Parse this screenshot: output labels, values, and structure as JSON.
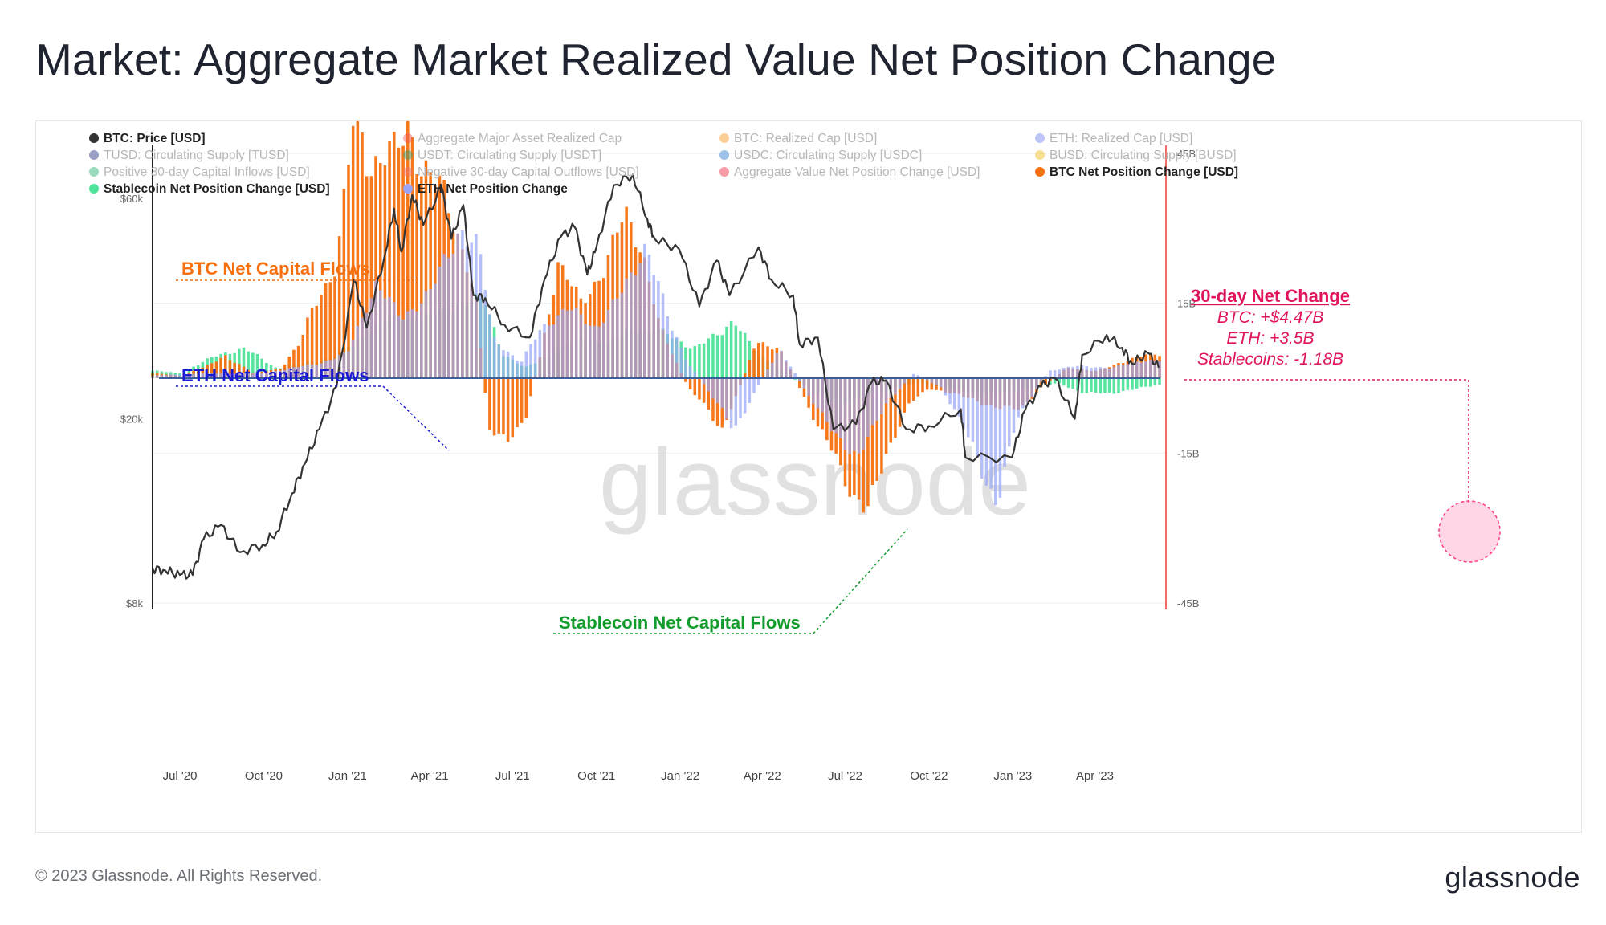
{
  "page": {
    "title": "Market: Aggregate Market Realized Value Net Position Change",
    "copyright": "© 2023 Glassnode. All Rights Reserved.",
    "logo": "glassnode",
    "watermark": "glassnode"
  },
  "chart_data": {
    "type": "line+bar",
    "legend": [
      {
        "label": "BTC: Price [USD]",
        "color": "#333333",
        "active": true
      },
      {
        "label": "Aggregate Major Asset Realized Cap",
        "color": "#f05a5a",
        "active": false
      },
      {
        "label": "BTC: Realized Cap [USD]",
        "color": "#f7931a",
        "active": false
      },
      {
        "label": "ETH: Realized Cap [USD]",
        "color": "#6a7fe8",
        "active": false
      },
      {
        "label": "TUSD: Circulating Supply [TUSD]",
        "color": "#1c2a7a",
        "active": false
      },
      {
        "label": "USDT: Circulating Supply [USDT]",
        "color": "#26a17b",
        "active": false
      },
      {
        "label": "USDC: Circulating Supply [USDC]",
        "color": "#2775ca",
        "active": false
      },
      {
        "label": "BUSD: Circulating Supply [BUSD]",
        "color": "#f0b90b",
        "active": false
      },
      {
        "label": "Positive 30-day Capital Inflows [USD]",
        "color": "#1fb06a",
        "active": false
      },
      {
        "label": "Negative 30-day Capital Outflows [USD]",
        "color": "#f07070",
        "active": false
      },
      {
        "label": "Aggregate Value Net Position Change [USD]",
        "color": "#e8223a",
        "active": false
      },
      {
        "label": "BTC Net Position Change [USD]",
        "color": "#f7700f",
        "active": true
      },
      {
        "label": "Stablecoin Net Position Change [USD]",
        "color": "#4ee39a",
        "active": true
      },
      {
        "label": "ETH Net Position Change",
        "color": "#99a6f7",
        "active": true
      }
    ],
    "x_ticks": [
      "Jul '20",
      "Oct '20",
      "Jan '21",
      "Apr '21",
      "Jul '21",
      "Oct '21",
      "Jan '22",
      "Apr '22",
      "Jul '22",
      "Oct '22",
      "Jan '23",
      "Apr '23"
    ],
    "x_range": [
      "2020-06-01",
      "2023-06-18"
    ],
    "y_left": {
      "label": "",
      "scale": "log",
      "range": [
        8000,
        75000
      ],
      "ticks": [
        "$8k",
        "$20k",
        "$60k"
      ]
    },
    "y_right": {
      "label": "",
      "scale": "linear",
      "range": [
        -45,
        45
      ],
      "unit": "B",
      "ticks": [
        "45B",
        "15B",
        "-15B",
        "-45B"
      ]
    },
    "btc_price": {
      "name": "BTC: Price [USD]",
      "color": "#333333",
      "points": [
        [
          "2020-06-01",
          9500
        ],
        [
          "2020-06-15",
          9400
        ],
        [
          "2020-07-01",
          9200
        ],
        [
          "2020-07-15",
          9200
        ],
        [
          "2020-07-27",
          11000
        ],
        [
          "2020-08-15",
          11800
        ],
        [
          "2020-09-05",
          10300
        ],
        [
          "2020-09-30",
          10700
        ],
        [
          "2020-10-15",
          11400
        ],
        [
          "2020-11-01",
          13800
        ],
        [
          "2020-11-15",
          16000
        ],
        [
          "2020-12-01",
          19000
        ],
        [
          "2020-12-20",
          23500
        ],
        [
          "2021-01-08",
          40000
        ],
        [
          "2021-01-22",
          31500
        ],
        [
          "2021-02-10",
          44500
        ],
        [
          "2021-02-21",
          57000
        ],
        [
          "2021-03-01",
          46000
        ],
        [
          "2021-03-13",
          61000
        ],
        [
          "2021-03-25",
          52500
        ],
        [
          "2021-04-14",
          63500
        ],
        [
          "2021-04-25",
          49000
        ],
        [
          "2021-05-08",
          58000
        ],
        [
          "2021-05-19",
          37000
        ],
        [
          "2021-06-01",
          36500
        ],
        [
          "2021-06-22",
          32000
        ],
        [
          "2021-07-20",
          30000
        ],
        [
          "2021-08-05",
          40000
        ],
        [
          "2021-08-23",
          49500
        ],
        [
          "2021-09-07",
          52000
        ],
        [
          "2021-09-21",
          41000
        ],
        [
          "2021-10-01",
          47000
        ],
        [
          "2021-10-20",
          64000
        ],
        [
          "2021-11-10",
          67500
        ],
        [
          "2021-11-26",
          54000
        ],
        [
          "2021-12-04",
          49000
        ],
        [
          "2021-12-31",
          46500
        ],
        [
          "2022-01-22",
          35000
        ],
        [
          "2022-02-10",
          44000
        ],
        [
          "2022-02-24",
          37000
        ],
        [
          "2022-03-28",
          47000
        ],
        [
          "2022-04-11",
          40000
        ],
        [
          "2022-05-05",
          37000
        ],
        [
          "2022-05-12",
          29000
        ],
        [
          "2022-06-01",
          30000
        ],
        [
          "2022-06-18",
          19000
        ],
        [
          "2022-07-13",
          19500
        ],
        [
          "2022-07-30",
          24000
        ],
        [
          "2022-08-15",
          24200
        ],
        [
          "2022-09-06",
          19000
        ],
        [
          "2022-10-01",
          19300
        ],
        [
          "2022-11-05",
          21000
        ],
        [
          "2022-11-10",
          16500
        ],
        [
          "2022-12-31",
          16500
        ],
        [
          "2023-01-14",
          20800
        ],
        [
          "2023-02-01",
          23500
        ],
        [
          "2023-02-16",
          24500
        ],
        [
          "2023-03-10",
          20000
        ],
        [
          "2023-03-18",
          27500
        ],
        [
          "2023-04-14",
          30400
        ],
        [
          "2023-05-01",
          28500
        ],
        [
          "2023-05-12",
          26300
        ],
        [
          "2023-05-29",
          27800
        ],
        [
          "2023-06-10",
          25800
        ]
      ]
    },
    "btc_net_position_change": {
      "name": "BTC Net Position Change [USD]",
      "color": "#f7700f",
      "unit": "B",
      "points": [
        [
          "2020-06-01",
          1.0
        ],
        [
          "2020-07-01",
          0.5
        ],
        [
          "2020-08-01",
          2.5
        ],
        [
          "2020-08-20",
          4.5
        ],
        [
          "2020-09-20",
          1.0
        ],
        [
          "2020-10-20",
          2.0
        ],
        [
          "2020-11-10",
          7.0
        ],
        [
          "2020-11-25",
          15.0
        ],
        [
          "2020-12-20",
          22.0
        ],
        [
          "2021-01-10",
          56.0
        ],
        [
          "2021-01-25",
          42.0
        ],
        [
          "2021-02-20",
          45.0
        ],
        [
          "2021-03-10",
          51.0
        ],
        [
          "2021-03-22",
          42.0
        ],
        [
          "2021-04-15",
          38.0
        ],
        [
          "2021-04-30",
          30.0
        ],
        [
          "2021-05-20",
          18.0
        ],
        [
          "2021-06-05",
          -10.0
        ],
        [
          "2021-06-25",
          -13.0
        ],
        [
          "2021-07-15",
          -8.0
        ],
        [
          "2021-08-01",
          5.0
        ],
        [
          "2021-08-20",
          23.0
        ],
        [
          "2021-09-15",
          15.0
        ],
        [
          "2021-10-10",
          22.0
        ],
        [
          "2021-11-01",
          33.0
        ],
        [
          "2021-11-20",
          26.0
        ],
        [
          "2021-12-10",
          10.0
        ],
        [
          "2022-01-10",
          -2.0
        ],
        [
          "2022-02-01",
          -6.0
        ],
        [
          "2022-02-15",
          -11.0
        ],
        [
          "2022-03-05",
          -3.0
        ],
        [
          "2022-03-25",
          7.0
        ],
        [
          "2022-04-20",
          6.0
        ],
        [
          "2022-05-10",
          -1.0
        ],
        [
          "2022-06-01",
          -10.0
        ],
        [
          "2022-06-20",
          -15.0
        ],
        [
          "2022-07-10",
          -24.0
        ],
        [
          "2022-07-25",
          -27.0
        ],
        [
          "2022-08-15",
          -15.0
        ],
        [
          "2022-09-10",
          -5.0
        ],
        [
          "2022-10-01",
          -2.0
        ],
        [
          "2022-10-25",
          -3.0
        ],
        [
          "2022-11-15",
          -4.0
        ],
        [
          "2022-12-15",
          -6.0
        ],
        [
          "2023-01-10",
          -6.0
        ],
        [
          "2023-02-01",
          -2.0
        ],
        [
          "2023-03-01",
          2.0
        ],
        [
          "2023-04-01",
          1.5
        ],
        [
          "2023-05-01",
          3.0
        ],
        [
          "2023-05-25",
          5.0
        ],
        [
          "2023-06-15",
          4.47
        ]
      ]
    },
    "eth_net_position_change": {
      "name": "ETH Net Position Change",
      "color": "#99a6f7",
      "unit": "B",
      "points": [
        [
          "2020-06-01",
          0.5
        ],
        [
          "2020-08-01",
          1.0
        ],
        [
          "2020-10-01",
          1.0
        ],
        [
          "2020-12-01",
          3.0
        ],
        [
          "2021-01-01",
          5.0
        ],
        [
          "2021-02-01",
          19.0
        ],
        [
          "2021-03-01",
          12.0
        ],
        [
          "2021-04-01",
          17.0
        ],
        [
          "2021-05-05",
          30.0
        ],
        [
          "2021-05-25",
          26.0
        ],
        [
          "2021-06-10",
          8.0
        ],
        [
          "2021-07-10",
          3.0
        ],
        [
          "2021-08-01",
          10.0
        ],
        [
          "2021-09-01",
          14.0
        ],
        [
          "2021-10-01",
          10.0
        ],
        [
          "2021-11-01",
          18.0
        ],
        [
          "2021-11-25",
          27.0
        ],
        [
          "2021-12-20",
          11.0
        ],
        [
          "2022-01-10",
          3.0
        ],
        [
          "2022-02-15",
          -6.0
        ],
        [
          "2022-03-01",
          -11.0
        ],
        [
          "2022-03-20",
          -4.0
        ],
        [
          "2022-04-20",
          6.0
        ],
        [
          "2022-05-20",
          -3.0
        ],
        [
          "2022-06-15",
          -10.0
        ],
        [
          "2022-07-15",
          -16.0
        ],
        [
          "2022-08-15",
          -5.0
        ],
        [
          "2022-09-15",
          1.0
        ],
        [
          "2022-10-15",
          -2.0
        ],
        [
          "2022-11-20",
          -14.0
        ],
        [
          "2022-12-05",
          -22.0
        ],
        [
          "2022-12-15",
          -26.0
        ],
        [
          "2023-01-05",
          -8.0
        ],
        [
          "2023-02-10",
          1.5
        ],
        [
          "2023-03-15",
          2.5
        ],
        [
          "2023-04-20",
          2.0
        ],
        [
          "2023-05-20",
          3.5
        ],
        [
          "2023-06-15",
          3.5
        ]
      ]
    },
    "stablecoin_net_position_change": {
      "name": "Stablecoin Net Position Change [USD]",
      "color": "#4ee39a",
      "unit": "B",
      "points": [
        [
          "2020-06-01",
          1.5
        ],
        [
          "2020-07-01",
          1.0
        ],
        [
          "2020-08-10",
          4.5
        ],
        [
          "2020-09-10",
          6.0
        ],
        [
          "2020-10-15",
          2.0
        ],
        [
          "2020-11-15",
          3.0
        ],
        [
          "2020-12-15",
          4.0
        ],
        [
          "2021-01-15",
          8.0
        ],
        [
          "2021-02-15",
          12.0
        ],
        [
          "2021-03-15",
          12.0
        ],
        [
          "2021-04-15",
          13.0
        ],
        [
          "2021-05-15",
          16.0
        ],
        [
          "2021-06-01",
          15.0
        ],
        [
          "2021-06-20",
          5.0
        ],
        [
          "2021-07-15",
          2.0
        ],
        [
          "2021-08-15",
          5.0
        ],
        [
          "2021-09-15",
          8.0
        ],
        [
          "2021-10-15",
          7.0
        ],
        [
          "2021-11-15",
          10.0
        ],
        [
          "2021-12-15",
          9.0
        ],
        [
          "2022-01-15",
          6.0
        ],
        [
          "2022-02-15",
          9.0
        ],
        [
          "2022-03-01",
          12.0
        ],
        [
          "2022-03-25",
          5.0
        ],
        [
          "2022-04-20",
          2.0
        ],
        [
          "2022-05-20",
          -2.0
        ],
        [
          "2022-06-20",
          -5.0
        ],
        [
          "2022-07-20",
          -4.0
        ],
        [
          "2022-08-20",
          -2.0
        ],
        [
          "2022-09-20",
          -1.0
        ],
        [
          "2022-10-20",
          -2.0
        ],
        [
          "2022-11-20",
          -3.0
        ],
        [
          "2022-12-20",
          -3.0
        ],
        [
          "2023-01-20",
          -2.0
        ],
        [
          "2023-02-20",
          -1.0
        ],
        [
          "2023-03-20",
          -3.0
        ],
        [
          "2023-04-20",
          -3.0
        ],
        [
          "2023-05-20",
          -2.0
        ],
        [
          "2023-06-15",
          -1.18
        ]
      ]
    },
    "annotations": {
      "btc_label": "BTC Net Capital Flows",
      "eth_label": "ETH Net Capital Flows",
      "stable_label": "Stablecoin Net Capital Flows",
      "net_change_title": "30-day Net Change",
      "net_change_btc": "BTC: +$4.47B",
      "net_change_eth": "ETH: +3.5B",
      "net_change_stable": "Stablecoins: -1.18B"
    }
  }
}
